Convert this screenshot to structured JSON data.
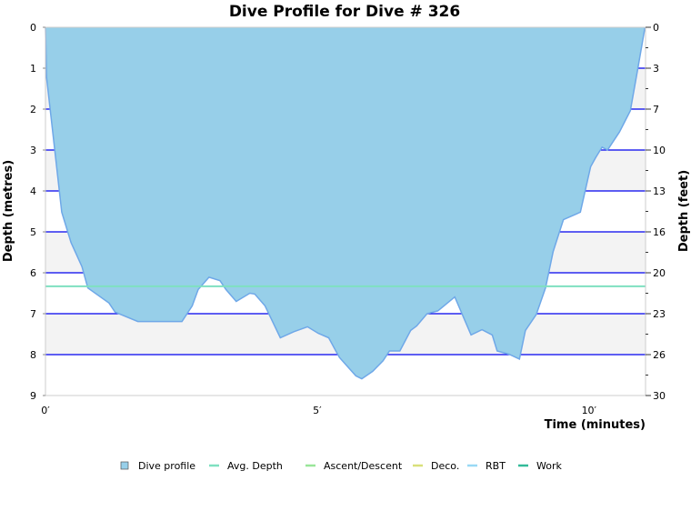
{
  "chart_data": {
    "type": "area",
    "title": "Dive Profile for Dive # 326",
    "xlabel": "Time (minutes)",
    "ylabel": "Depth (metres)",
    "ylabel_right": "Depth (feet)",
    "xlim": [
      0,
      11.04
    ],
    "ylim": [
      0,
      9
    ],
    "y_inverted": true,
    "x_ticks": [
      {
        "value": 0,
        "label": "0′"
      },
      {
        "value": 5,
        "label": "5′"
      },
      {
        "value": 10,
        "label": "10′"
      }
    ],
    "y_ticks": [
      {
        "value": 0,
        "label": "0"
      },
      {
        "value": 1,
        "label": "1"
      },
      {
        "value": 2,
        "label": "2"
      },
      {
        "value": 3,
        "label": "3"
      },
      {
        "value": 4,
        "label": "4"
      },
      {
        "value": 5,
        "label": "5"
      },
      {
        "value": 6,
        "label": "6"
      },
      {
        "value": 7,
        "label": "7"
      },
      {
        "value": 8,
        "label": "8"
      },
      {
        "value": 9,
        "label": "9"
      }
    ],
    "y_right_ticks": [
      {
        "value": 0,
        "label": "0"
      },
      {
        "value": 1,
        "label": "3"
      },
      {
        "value": 2,
        "label": "7"
      },
      {
        "value": 3,
        "label": "10"
      },
      {
        "value": 4,
        "label": "13"
      },
      {
        "value": 5,
        "label": "16"
      },
      {
        "value": 6,
        "label": "20"
      },
      {
        "value": 7,
        "label": "23"
      },
      {
        "value": 8,
        "label": "26"
      },
      {
        "value": 9,
        "label": "30"
      }
    ],
    "grid": true,
    "legend_position": "bottom",
    "avg_depth": 6.33,
    "series": [
      {
        "name": "Dive profile",
        "color": "#97cfe9",
        "stroke": "#6fa8e8",
        "points": [
          [
            0,
            0
          ],
          [
            0.02,
            1.22
          ],
          [
            0.3,
            4.52
          ],
          [
            0.47,
            5.26
          ],
          [
            0.67,
            5.85
          ],
          [
            0.78,
            6.37
          ],
          [
            1.17,
            6.74
          ],
          [
            1.28,
            6.96
          ],
          [
            1.7,
            7.19
          ],
          [
            2.51,
            7.19
          ],
          [
            2.7,
            6.81
          ],
          [
            2.81,
            6.41
          ],
          [
            3.01,
            6.11
          ],
          [
            3.21,
            6.19
          ],
          [
            3.32,
            6.41
          ],
          [
            3.51,
            6.7
          ],
          [
            3.76,
            6.5
          ],
          [
            3.85,
            6.52
          ],
          [
            4.04,
            6.81
          ],
          [
            4.32,
            7.59
          ],
          [
            4.57,
            7.44
          ],
          [
            4.82,
            7.32
          ],
          [
            5.02,
            7.48
          ],
          [
            5.21,
            7.59
          ],
          [
            5.35,
            7.93
          ],
          [
            5.41,
            8.07
          ],
          [
            5.71,
            8.52
          ],
          [
            5.82,
            8.59
          ],
          [
            6.02,
            8.41
          ],
          [
            6.21,
            8.15
          ],
          [
            6.33,
            7.91
          ],
          [
            6.52,
            7.91
          ],
          [
            6.72,
            7.41
          ],
          [
            6.83,
            7.3
          ],
          [
            7.02,
            7.0
          ],
          [
            7.22,
            6.93
          ],
          [
            7.53,
            6.59
          ],
          [
            7.83,
            7.52
          ],
          [
            8.03,
            7.39
          ],
          [
            8.22,
            7.52
          ],
          [
            8.31,
            7.91
          ],
          [
            8.53,
            7.99
          ],
          [
            8.72,
            8.11
          ],
          [
            8.83,
            7.41
          ],
          [
            9.03,
            7.02
          ],
          [
            9.2,
            6.37
          ],
          [
            9.34,
            5.48
          ],
          [
            9.53,
            4.7
          ],
          [
            9.84,
            4.52
          ],
          [
            10.03,
            3.41
          ],
          [
            10.12,
            3.19
          ],
          [
            10.24,
            2.93
          ],
          [
            10.34,
            3.0
          ],
          [
            10.56,
            2.56
          ],
          [
            10.76,
            2.04
          ],
          [
            10.9,
            1.0
          ],
          [
            11.03,
            0
          ]
        ]
      }
    ],
    "legend": [
      {
        "label": "Dive profile",
        "color": "#97cfe9",
        "kind": "box"
      },
      {
        "label": "Avg. Depth",
        "color": "#7fe0c0",
        "kind": "line"
      },
      {
        "label": "Ascent/Descent",
        "color": "#99e699",
        "kind": "line"
      },
      {
        "label": "Deco.",
        "color": "#d9e07a",
        "kind": "line"
      },
      {
        "label": "RBT",
        "color": "#99d9f5",
        "kind": "line"
      },
      {
        "label": "Work",
        "color": "#33bb99",
        "kind": "line"
      }
    ]
  }
}
